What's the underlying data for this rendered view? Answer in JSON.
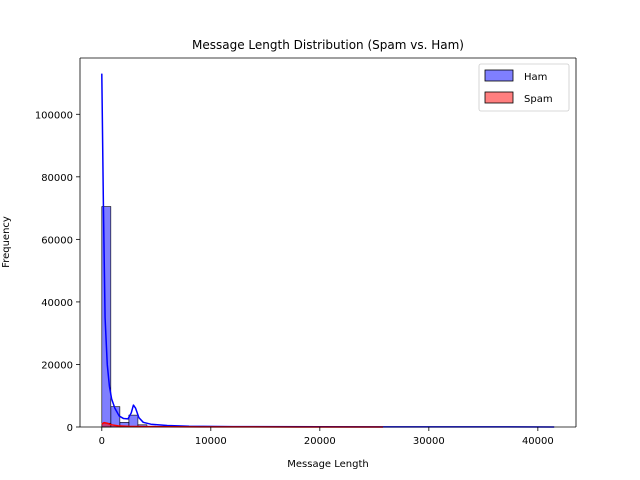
{
  "chart_data": {
    "type": "bar",
    "title": "Message Length Distribution (Spam vs. Ham)",
    "xlabel": "Message Length",
    "ylabel": "Frequency",
    "xlim": [
      -2000,
      43500
    ],
    "ylim": [
      0,
      118000
    ],
    "xticks": [
      0,
      10000,
      20000,
      30000,
      40000
    ],
    "xtick_labels": [
      "0",
      "10000",
      "20000",
      "30000",
      "40000"
    ],
    "yticks": [
      0,
      20000,
      40000,
      60000,
      80000,
      100000
    ],
    "ytick_labels": [
      "0",
      "20000",
      "40000",
      "60000",
      "80000",
      "100000"
    ],
    "grid": false,
    "legend_position": "top-right",
    "bins": {
      "start": 0,
      "width": 828
    },
    "series": [
      {
        "name": "Ham",
        "color": "#0000ff",
        "fill_opacity": 0.5,
        "counts": [
          70500,
          6500,
          1500,
          3800,
          700,
          400,
          250,
          180,
          130,
          100,
          80,
          60,
          50,
          40,
          30,
          25,
          20,
          18,
          15,
          12,
          10,
          8,
          7,
          6,
          5,
          4,
          4,
          3,
          3,
          2,
          2,
          2,
          1,
          1,
          1,
          1,
          1,
          1,
          1,
          1,
          1,
          1,
          1,
          1,
          1,
          1,
          1,
          1,
          1,
          1
        ],
        "kde": {
          "x": [
            0,
            150,
            300,
            500,
            700,
            900,
            1200,
            1600,
            2000,
            2400,
            2700,
            2900,
            3100,
            3400,
            3800,
            4500,
            6000,
            8000,
            12000,
            20000,
            30000,
            41500
          ],
          "y": [
            113000,
            70000,
            35000,
            20000,
            13000,
            9000,
            6000,
            3500,
            2700,
            2600,
            4500,
            7000,
            6000,
            3000,
            1500,
            900,
            500,
            250,
            120,
            60,
            30,
            20
          ]
        }
      },
      {
        "name": "Spam",
        "color": "#ff0000",
        "fill_opacity": 0.5,
        "counts": [
          1200,
          300,
          120,
          60,
          40,
          30,
          25,
          20,
          15,
          12,
          10,
          8,
          6,
          5,
          4,
          3,
          3,
          2,
          2,
          2,
          1,
          1,
          1,
          1,
          1,
          1,
          1,
          1,
          1,
          1,
          1
        ],
        "kde": {
          "x": [
            0,
            200,
            500,
            900,
            1500,
            2500,
            4000,
            6000,
            9000,
            13000,
            18000,
            22000,
            25800
          ],
          "y": [
            900,
            1400,
            1200,
            700,
            350,
            200,
            120,
            70,
            40,
            25,
            15,
            10,
            5
          ]
        }
      }
    ]
  }
}
